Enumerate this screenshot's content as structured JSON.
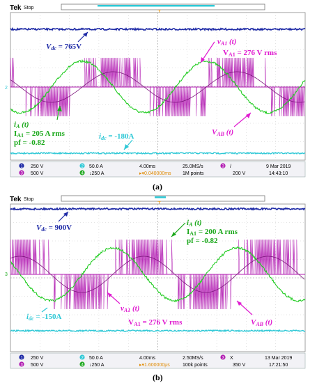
{
  "chart_data": [
    {
      "type": "line",
      "panel_label": "(a)",
      "scope": {
        "brand": "Tek",
        "state": "Stop",
        "ch1_scale": "250 V",
        "ch2_scale": "50.0 A",
        "ch3_scale": "500 V",
        "ch4_scale": "↓250 A",
        "ch2_marker": "2",
        "time_div": "4.00ms",
        "sample_rate": "25.0MS/s",
        "record": "1M points",
        "trigger_pos": "▸▾0.040000ms",
        "trigger_channel": "3",
        "trigger_icon": "/",
        "trigger_level": "200 V",
        "date": "9 Mar  2019",
        "time": "14:43:10"
      },
      "annotations": {
        "vdc": "V",
        "vdc_sub": "dc",
        "vdc_val": " = 765V",
        "va1": "v",
        "va1_sub": "A1",
        "va1_t": " (t)",
        "va1_rms": "V",
        "va1_rms_sub": "A1",
        "va1_rms_val": " = 276 V rms",
        "ia": "i",
        "ia_sub": "A",
        "ia_t": " (t)",
        "ia1": "I",
        "ia1_sub": "A1",
        "ia1_val": " = 205 A rms",
        "pf": "pf = -0.82",
        "idc": "i",
        "idc_sub": "dc",
        "idc_val": " = -180A",
        "vab": "V",
        "vab_sub": "AB",
        "vab_t": " (t)"
      },
      "signals": {
        "vdc_level_v": 765,
        "idc_level_a": -180,
        "phase_current_rms_a": 205,
        "phase_voltage_rms_v": 276,
        "power_factor": -0.82
      },
      "colors": {
        "vdc": "#1e2aa6",
        "idc": "#2ec8d6",
        "vab": "#b11bb1",
        "ia": "#22cc22",
        "annotation_magenta": "#e01bd0",
        "annotation_green": "#1aa81a"
      }
    },
    {
      "type": "line",
      "panel_label": "(b)",
      "scope": {
        "brand": "Tek",
        "state": "Stop",
        "ch1_scale": "250 V",
        "ch2_scale": "50.0 A",
        "ch3_scale": "500 V",
        "ch4_scale": "↓250 A",
        "ch2_marker": "3",
        "time_div": "4.00ms",
        "sample_rate": "2.50MS/s",
        "record": "100k points",
        "trigger_pos": "▸▾1.600000μs",
        "trigger_channel": "3",
        "trigger_icon": "X",
        "trigger_level": "350 V",
        "date": "13 Mar  2019",
        "time": "17:21:50"
      },
      "annotations": {
        "vdc": "V",
        "vdc_sub": "dc",
        "vdc_val": " = 900V",
        "ia": "i",
        "ia_sub": "A",
        "ia_t": " (t)",
        "ia1": "I",
        "ia1_sub": "A1",
        "ia1_val": " = 200 A rms",
        "pf": "pf = -0.82",
        "va1": "v",
        "va1_sub": "A1",
        "va1_t": " (t)",
        "idc": "i",
        "idc_sub": "dc",
        "idc_val": " = -150A",
        "va1_rms": "V",
        "va1_rms_sub": "A1",
        "va1_rms_val": " = 276 V rms",
        "vab": "V",
        "vab_sub": "AB",
        "vab_t": " (t)"
      },
      "signals": {
        "vdc_level_v": 900,
        "idc_level_a": -150,
        "phase_current_rms_a": 200,
        "phase_voltage_rms_v": 276,
        "power_factor": -0.82
      },
      "colors": {
        "vdc": "#1e2aa6",
        "idc": "#2ec8d6",
        "vab": "#b11bb1",
        "ia": "#22cc22",
        "annotation_magenta": "#e01bd0",
        "annotation_green": "#1aa81a"
      }
    }
  ]
}
